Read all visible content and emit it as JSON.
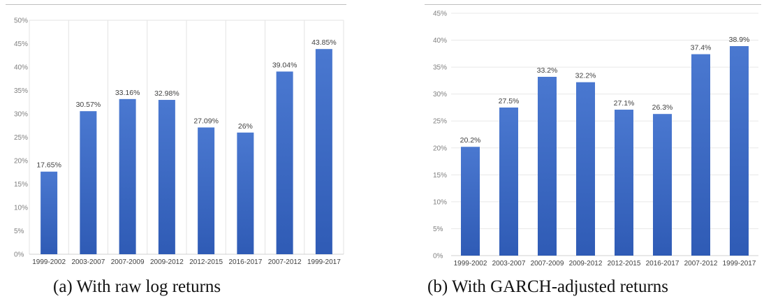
{
  "chart_data": [
    {
      "type": "bar",
      "caption": "(a)  With raw log returns",
      "categories": [
        "1999-2002",
        "2003-2007",
        "2007-2009",
        "2009-2012",
        "2012-2015",
        "2016-2017",
        "2007-2012",
        "1999-2017"
      ],
      "values": [
        17.65,
        30.57,
        33.16,
        32.98,
        27.09,
        26,
        39.04,
        43.85
      ],
      "value_labels": [
        "17.65%",
        "30.57%",
        "33.16%",
        "32.98%",
        "27.09%",
        "26%",
        "39.04%",
        "43.85%"
      ],
      "ylim": [
        0,
        50
      ],
      "yticks": [
        "0%",
        "5%",
        "10%",
        "15%",
        "20%",
        "25%",
        "30%",
        "35%",
        "40%",
        "45%",
        "50%"
      ],
      "grid": "vertical",
      "bar_color": "#4472c4"
    },
    {
      "type": "bar",
      "caption": "(b)  With GARCH-adjusted returns",
      "categories": [
        "1999-2002",
        "2003-2007",
        "2007-2009",
        "2009-2012",
        "2012-2015",
        "2016-2017",
        "2007-2012",
        "1999-2017"
      ],
      "values": [
        20.2,
        27.5,
        33.2,
        32.2,
        27.1,
        26.3,
        37.4,
        38.9
      ],
      "value_labels": [
        "20.2%",
        "27.5%",
        "33.2%",
        "32.2%",
        "27.1%",
        "26.3%",
        "37.4%",
        "38.9%"
      ],
      "ylim": [
        0,
        45
      ],
      "yticks": [
        "0%",
        "5%",
        "10%",
        "15%",
        "20%",
        "25%",
        "30%",
        "35%",
        "40%",
        "45%"
      ],
      "grid": "horizontal",
      "bar_color": "#4472c4"
    }
  ]
}
